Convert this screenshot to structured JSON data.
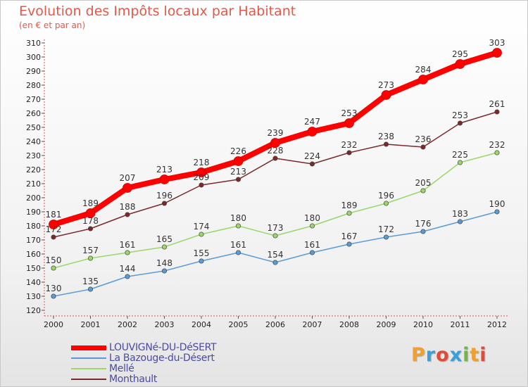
{
  "header": {
    "title": "Evolution des Impôts locaux par Habitant",
    "subtitle": "(en € et par an)"
  },
  "logo": {
    "letters": [
      "P",
      "r",
      "o",
      "x",
      "i",
      "t",
      "i"
    ],
    "colors": [
      "#f0a030",
      "#3aa0d8",
      "#e04a3a",
      "#3aa0d8",
      "#70b840",
      "#f0a030",
      "#e04a3a"
    ]
  },
  "chart_data": {
    "type": "line",
    "title": "Evolution des Impôts locaux par Habitant",
    "subtitle": "(en € et par an)",
    "xlabel": "",
    "ylabel": "",
    "x": [
      "2000",
      "2001",
      "2002",
      "2003",
      "2004",
      "2005",
      "2006",
      "2007",
      "2008",
      "2009",
      "2010",
      "2011",
      "2012"
    ],
    "ylim": [
      120,
      310
    ],
    "yticks": [
      120,
      130,
      140,
      150,
      160,
      170,
      180,
      190,
      200,
      210,
      220,
      230,
      240,
      250,
      260,
      270,
      280,
      290,
      300,
      310
    ],
    "grid": false,
    "legend_position": "bottom-left",
    "series": [
      {
        "name": "LOUVIGNé-DU-DéSERT",
        "color": "#ff0000",
        "values": [
          181,
          189,
          207,
          213,
          218,
          226,
          239,
          247,
          253,
          273,
          284,
          295,
          303
        ]
      },
      {
        "name": "La Bazouge-du-Désert",
        "color": "#5b9bd5",
        "values": [
          130,
          135,
          144,
          148,
          155,
          161,
          154,
          161,
          167,
          172,
          176,
          183,
          190
        ]
      },
      {
        "name": "Mellé",
        "color": "#9bd66a",
        "values": [
          150,
          157,
          161,
          165,
          174,
          180,
          173,
          180,
          189,
          196,
          205,
          225,
          232
        ]
      },
      {
        "name": "Monthault",
        "color": "#7a2a2a",
        "values": [
          172,
          178,
          188,
          196,
          209,
          213,
          228,
          224,
          232,
          238,
          236,
          253,
          261
        ]
      }
    ]
  }
}
